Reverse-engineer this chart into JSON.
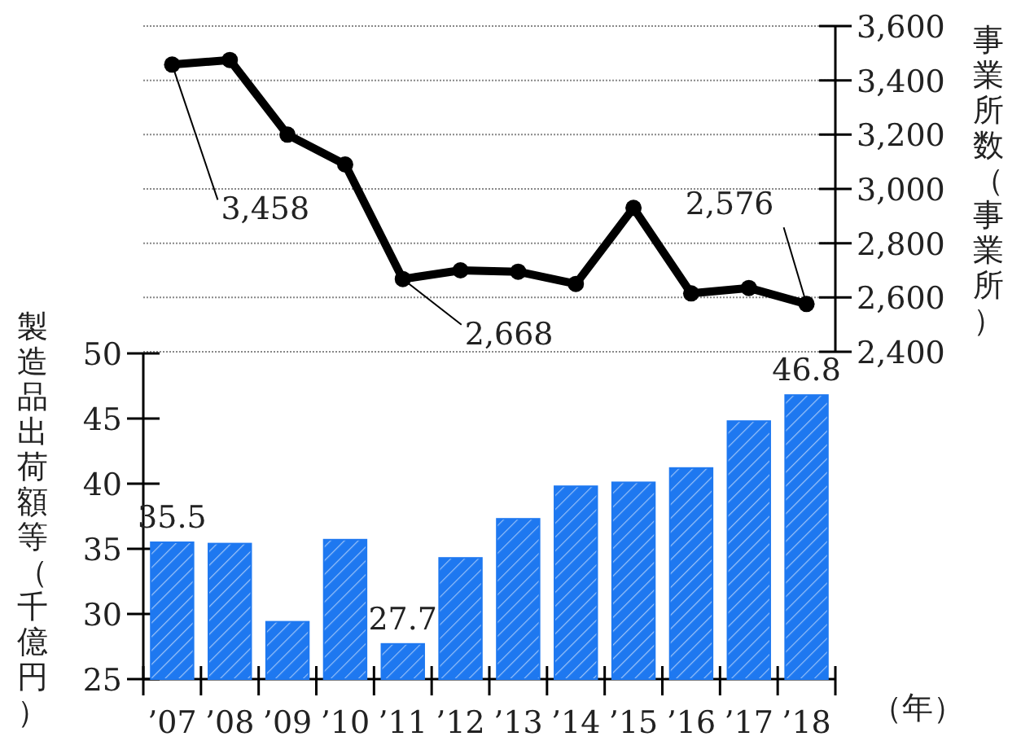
{
  "chart_data": [
    {
      "type": "line",
      "ylabel": "事業所数（事業所）",
      "categories": [
        null,
        null,
        null,
        null,
        null,
        null,
        null,
        null,
        null,
        null,
        null,
        null
      ],
      "values": [
        3458,
        3475,
        3200,
        3090,
        2668,
        2700,
        2695,
        2650,
        2930,
        2615,
        2635,
        2576
      ],
      "value_labels": [
        "3,458",
        null,
        null,
        null,
        "2,668",
        null,
        null,
        null,
        null,
        null,
        null,
        "2,576"
      ],
      "color": "#000000",
      "marker": "circle",
      "ylim": [
        2400,
        3600
      ],
      "yticks": [
        {
          "value": 2400,
          "label": "2,400"
        },
        {
          "value": 2600,
          "label": "2,600"
        },
        {
          "value": 2800,
          "label": "2,800"
        },
        {
          "value": 3000,
          "label": "3,000"
        },
        {
          "value": 3200,
          "label": "3,200"
        },
        {
          "value": 3400,
          "label": "3,400"
        },
        {
          "value": 3600,
          "label": "3,600"
        }
      ],
      "grid": "y",
      "tick_labels": "y"
    },
    {
      "type": "bar",
      "ylabel": "製造品出荷額等（千億円）",
      "xlabel": "（年）",
      "categories": [
        "’07",
        "’08",
        "’09",
        "’10",
        "’11",
        "’12",
        "’13",
        "’14",
        "’15",
        "’16",
        "’17",
        "’18"
      ],
      "values": [
        35.5,
        35.4,
        29.4,
        35.7,
        27.7,
        34.3,
        37.3,
        39.8,
        40.1,
        41.2,
        44.8,
        46.8
      ],
      "value_labels": [
        "35.5",
        null,
        null,
        null,
        "27.7",
        null,
        null,
        null,
        null,
        null,
        null,
        "46.8"
      ],
      "color": "#1e78f0",
      "ylim": [
        25,
        50
      ],
      "yticks": [
        25,
        30,
        35,
        40,
        45,
        50
      ]
    }
  ]
}
